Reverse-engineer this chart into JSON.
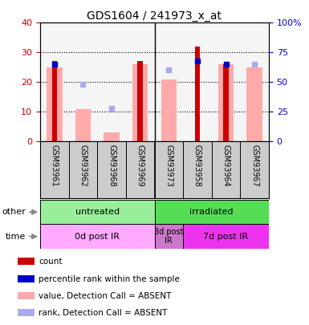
{
  "title": "GDS1604 / 241973_x_at",
  "samples": [
    "GSM93961",
    "GSM93962",
    "GSM93968",
    "GSM93969",
    "GSM93973",
    "GSM93958",
    "GSM93964",
    "GSM93967"
  ],
  "count_values": [
    27,
    0,
    0,
    27,
    0,
    32,
    26,
    0
  ],
  "count_color": "#cc0000",
  "pink_bar_values": [
    25,
    11,
    3,
    26,
    21,
    0,
    26,
    25
  ],
  "pink_bar_color": "#ffaaaa",
  "blue_dot_values": [
    65,
    0,
    0,
    0,
    0,
    68,
    65,
    0
  ],
  "blue_dot_color": "#0000cc",
  "light_blue_dot_values": [
    0,
    48,
    28,
    0,
    60,
    0,
    0,
    65
  ],
  "light_blue_dot_color": "#aaaaee",
  "ylim_left": [
    0,
    40
  ],
  "ylim_right": [
    0,
    100
  ],
  "yticks_left": [
    0,
    10,
    20,
    30,
    40
  ],
  "yticks_right": [
    0,
    25,
    50,
    75,
    100
  ],
  "ytick_labels_left": [
    "0",
    "10",
    "20",
    "30",
    "40"
  ],
  "ytick_labels_right": [
    "0",
    "25",
    "50",
    "75",
    "100%"
  ],
  "group_other": [
    {
      "label": "untreated",
      "start": 0,
      "end": 4,
      "color": "#99ee99"
    },
    {
      "label": "irradiated",
      "start": 4,
      "end": 8,
      "color": "#55dd55"
    }
  ],
  "group_time": [
    {
      "label": "0d post IR",
      "start": 0,
      "end": 4,
      "color": "#ffaaff"
    },
    {
      "label": "3d post\nIR",
      "start": 4,
      "end": 5,
      "color": "#cc77cc"
    },
    {
      "label": "7d post IR",
      "start": 5,
      "end": 8,
      "color": "#ee33ee"
    }
  ],
  "legend_items": [
    {
      "label": "count",
      "color": "#cc0000"
    },
    {
      "label": "percentile rank within the sample",
      "color": "#0000cc"
    },
    {
      "label": "value, Detection Call = ABSENT",
      "color": "#ffaaaa"
    },
    {
      "label": "rank, Detection Call = ABSENT",
      "color": "#aaaaee"
    }
  ],
  "background_color": "#ffffff",
  "plot_bg_color": "#f5f5f5",
  "left_tick_color": "#cc0000",
  "right_tick_color": "#0000cc"
}
